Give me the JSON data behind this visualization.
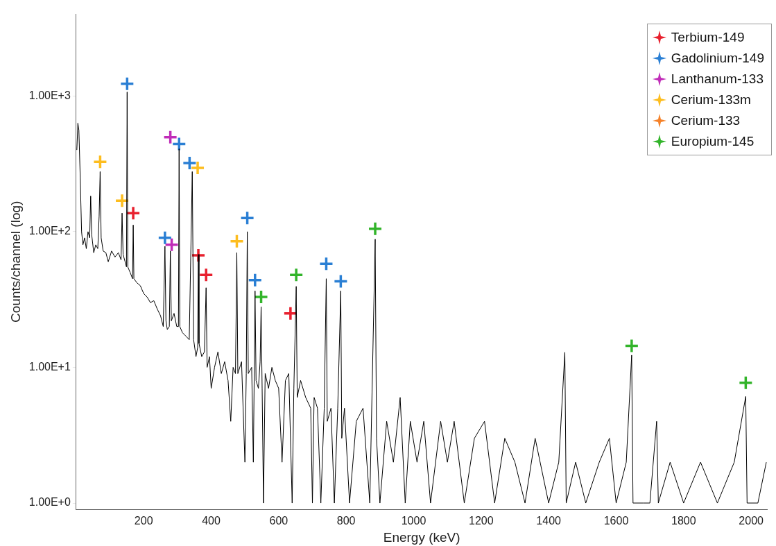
{
  "chart_data": {
    "type": "line",
    "xlabel": "Energy (keV)",
    "ylabel": "Counts/channel (log)",
    "log": "y",
    "legend": "top right",
    "marker": "cross",
    "xlim": [
      0,
      2048
    ],
    "xticks": [
      200,
      400,
      600,
      800,
      1000,
      1200,
      1400,
      1600,
      1800,
      2000
    ],
    "ylim": [
      0.9,
      4000
    ],
    "yticks": [
      {
        "value": 1,
        "label": "1.00E+0"
      },
      {
        "value": 10,
        "label": "1.00E+1"
      },
      {
        "value": 100,
        "label": "1.00E+2"
      },
      {
        "value": 1000,
        "label": "1.00E+3"
      }
    ],
    "series": [
      {
        "color": "#000000",
        "marker": "none",
        "x": [
          2,
          5,
          8,
          12,
          16,
          20,
          25,
          30,
          35,
          40,
          43,
          46,
          52,
          58,
          64,
          68,
          71,
          74,
          80,
          88,
          95,
          105,
          115,
          125,
          133,
          136,
          139,
          145,
          149,
          151,
          153,
          160,
          167,
          169,
          171,
          180,
          190,
          200,
          210,
          220,
          230,
          240,
          250,
          258,
          263,
          266,
          270,
          276,
          279,
          282,
          290,
          298,
          303,
          305,
          307,
          315,
          325,
          335,
          344,
          348,
          355,
          360,
          362,
          364,
          372,
          380,
          385,
          388,
          395,
          400,
          410,
          420,
          430,
          440,
          450,
          458,
          465,
          472,
          476,
          479,
          490,
          500,
          504,
          507,
          510,
          520,
          525,
          530,
          533,
          540,
          545,
          548,
          551,
          555,
          560,
          570,
          580,
          590,
          600,
          610,
          620,
          630,
          640,
          645,
          652,
          655,
          665,
          680,
          695,
          700,
          705,
          715,
          725,
          735,
          741,
          744,
          755,
          765,
          775,
          784,
          787,
          795,
          810,
          830,
          850,
          870,
          886,
          890,
          900,
          920,
          940,
          960,
          975,
          990,
          1010,
          1030,
          1050,
          1080,
          1100,
          1120,
          1150,
          1180,
          1210,
          1240,
          1270,
          1300,
          1330,
          1360,
          1400,
          1430,
          1448,
          1452,
          1480,
          1510,
          1550,
          1580,
          1600,
          1630,
          1646,
          1650,
          1680,
          1700,
          1720,
          1725,
          1760,
          1800,
          1850,
          1900,
          1950,
          1984,
          1988,
          2020,
          2045
        ],
        "values": [
          400,
          630,
          560,
          250,
          100,
          80,
          90,
          75,
          100,
          90,
          183,
          95,
          70,
          80,
          75,
          130,
          277,
          90,
          72,
          70,
          60,
          72,
          65,
          70,
          62,
          137,
          68,
          60,
          55,
          1070,
          55,
          50,
          45,
          112,
          45,
          42,
          40,
          35,
          33,
          30,
          31,
          27,
          24,
          20,
          78,
          22,
          19,
          20,
          72,
          22,
          25,
          20,
          20,
          408,
          20,
          18,
          17,
          16,
          277,
          16,
          12,
          14,
          68,
          15,
          12,
          13,
          38.6,
          10,
          12,
          7,
          10,
          13,
          9,
          11,
          8,
          4,
          10,
          9,
          70,
          9,
          11,
          2,
          9,
          100,
          9,
          10,
          2,
          36.6,
          8,
          7,
          11,
          28,
          7,
          1,
          9,
          7,
          10,
          8,
          7,
          2,
          8,
          9,
          1,
          7,
          39.5,
          6,
          8,
          6,
          5,
          1,
          6,
          5,
          1,
          5,
          45,
          4,
          5,
          1,
          5,
          36.6,
          3,
          5,
          1,
          4,
          5,
          1,
          88,
          3,
          1,
          4,
          2,
          6,
          1,
          4,
          2,
          4,
          1,
          4,
          2,
          4,
          1,
          3,
          4,
          1,
          3,
          2,
          1,
          3,
          1,
          2,
          12.9,
          1,
          2,
          1,
          2,
          3,
          1,
          2,
          12.3,
          1,
          1,
          1,
          4,
          1,
          2,
          1,
          2,
          1,
          2,
          6.1,
          1,
          1,
          2
        ]
      },
      {
        "type": "scatter",
        "name": "Terbium-149",
        "color": "#e8202e",
        "x": [
          169,
          362,
          385,
          635
        ],
        "values": [
          137,
          67,
          48,
          25
        ]
      },
      {
        "type": "scatter",
        "name": "Gadolinium-149",
        "color": "#2a7fd4",
        "x": [
          151,
          305,
          336,
          263,
          507,
          530,
          741,
          784
        ],
        "values": [
          1230,
          443,
          320,
          90,
          126,
          44,
          58,
          43
        ]
      },
      {
        "type": "scatter",
        "name": "Lanthanum-133",
        "color": "#c02cb8",
        "x": [
          279,
          283
        ],
        "values": [
          497,
          80
        ]
      },
      {
        "type": "scatter",
        "name": "Cerium-133m",
        "color": "#fdbd1f",
        "x": [
          71,
          136,
          360,
          476
        ],
        "values": [
          327,
          169,
          295,
          85
        ]
      },
      {
        "type": "scatter",
        "name": "Cerium-133",
        "color": "#f5822a"
      },
      {
        "type": "scatter",
        "name": "Europium-145",
        "color": "#32b42a",
        "x": [
          548,
          652,
          886,
          1646,
          1984
        ],
        "values": [
          33,
          48,
          105,
          14.4,
          7.7
        ]
      }
    ]
  }
}
